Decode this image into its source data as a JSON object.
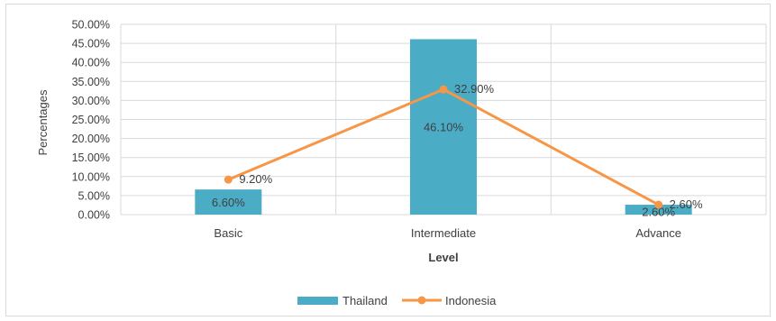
{
  "chart_data": {
    "type": "bar",
    "categories": [
      "Basic",
      "Intermediate",
      "Advance"
    ],
    "series": [
      {
        "name": "Thailand",
        "type": "bar",
        "values": [
          6.6,
          46.1,
          2.6
        ],
        "labels": [
          "6.60%",
          "46.10%",
          "2.60%"
        ],
        "color": "#4bacc6"
      },
      {
        "name": "Indonesia",
        "type": "line",
        "values": [
          9.2,
          32.9,
          2.6
        ],
        "labels": [
          "9.20%",
          "32.90%",
          "2.60%"
        ],
        "color": "#f79646"
      }
    ],
    "yticks": [
      "0.00%",
      "5.00%",
      "10.00%",
      "15.00%",
      "20.00%",
      "25.00%",
      "30.00%",
      "35.00%",
      "40.00%",
      "45.00%",
      "50.00%"
    ],
    "ylim": [
      0,
      50
    ],
    "ylabel": "Percentages",
    "xlabel": "Level",
    "grid": true,
    "legend_position": "bottom"
  }
}
